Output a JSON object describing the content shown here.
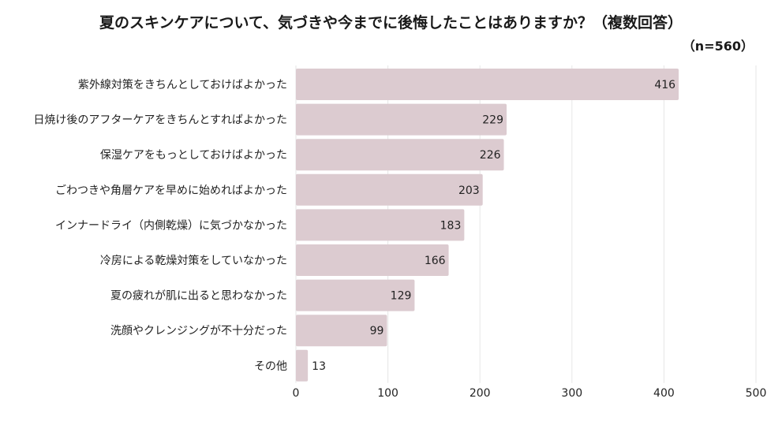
{
  "title": "夏のスキンケアについて、気づきや今までに後悔したことはありますか？（複数回答）",
  "sample_note": "（n=560）",
  "colors": {
    "bar": "#dccbd0",
    "grid": "#e6e6e6",
    "text": "#222222"
  },
  "chart_data": {
    "type": "bar",
    "orientation": "horizontal",
    "title": "夏のスキンケアについて、気づきや今までに後悔したことはありますか？（複数回答）",
    "categories": [
      "紫外線対策をきちんとしておけばよかった",
      "日焼け後のアフターケアをきちんとすればよかった",
      "保湿ケアをもっとしておけばよかった",
      "ごわつきや角層ケアを早めに始めればよかった",
      "インナードライ（内側乾燥）に気づかなかった",
      "冷房による乾燥対策をしていなかった",
      "夏の疲れが肌に出ると思わなかった",
      "洗顔やクレンジングが不十分だった",
      "その他"
    ],
    "values": [
      416,
      229,
      226,
      203,
      183,
      166,
      129,
      99,
      13
    ],
    "xlim": [
      0,
      500
    ],
    "xticks": [
      0,
      100,
      200,
      300,
      400,
      500
    ],
    "grid": true,
    "xlabel": "",
    "ylabel": ""
  }
}
